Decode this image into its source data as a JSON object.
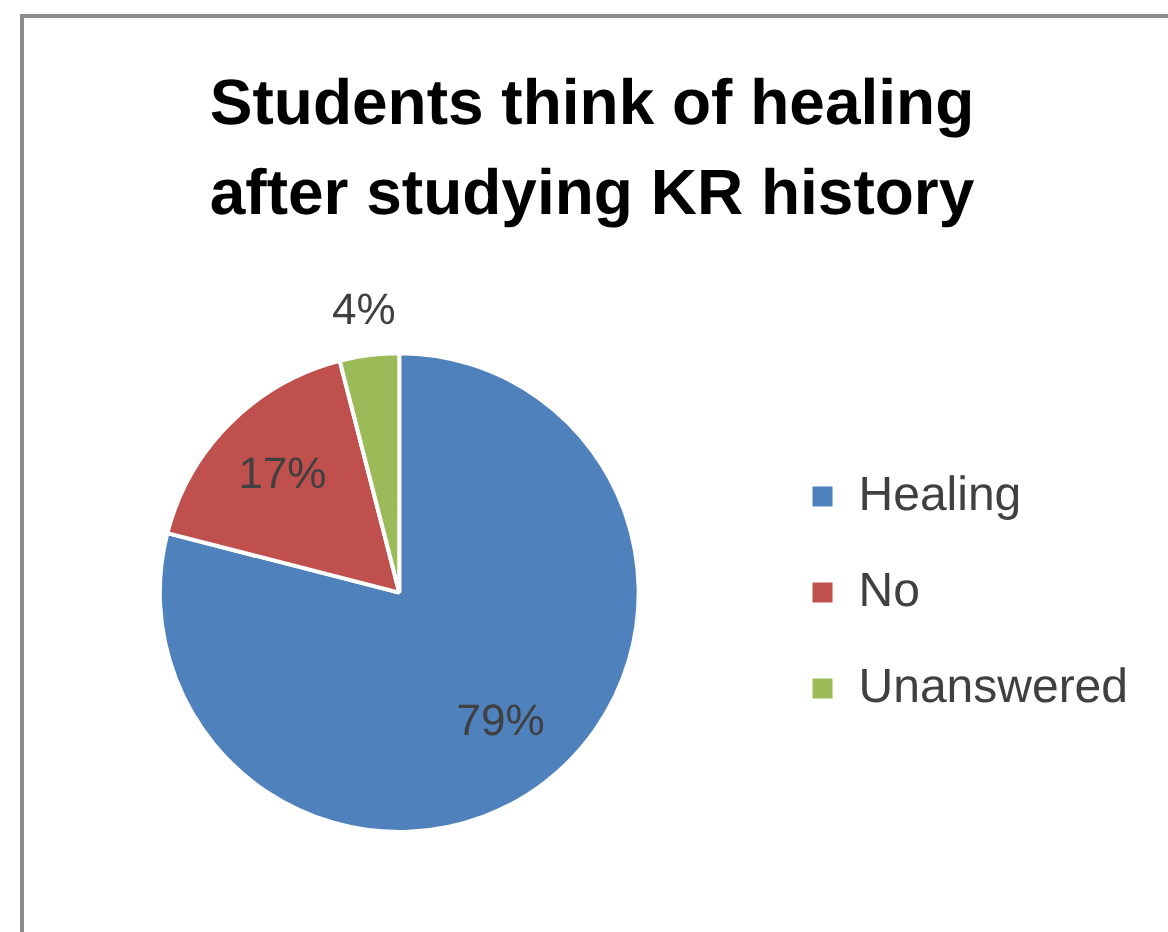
{
  "chart_data": {
    "type": "pie",
    "title": "Students think of healing after studying KR history",
    "categories": [
      "Healing",
      "No",
      "Unanswered"
    ],
    "values": [
      79,
      17,
      4
    ],
    "colors": [
      "#4f81bd",
      "#c0504d",
      "#9bbb59"
    ],
    "value_labels": [
      "79%",
      "17%",
      "4%"
    ],
    "legend": "right"
  }
}
